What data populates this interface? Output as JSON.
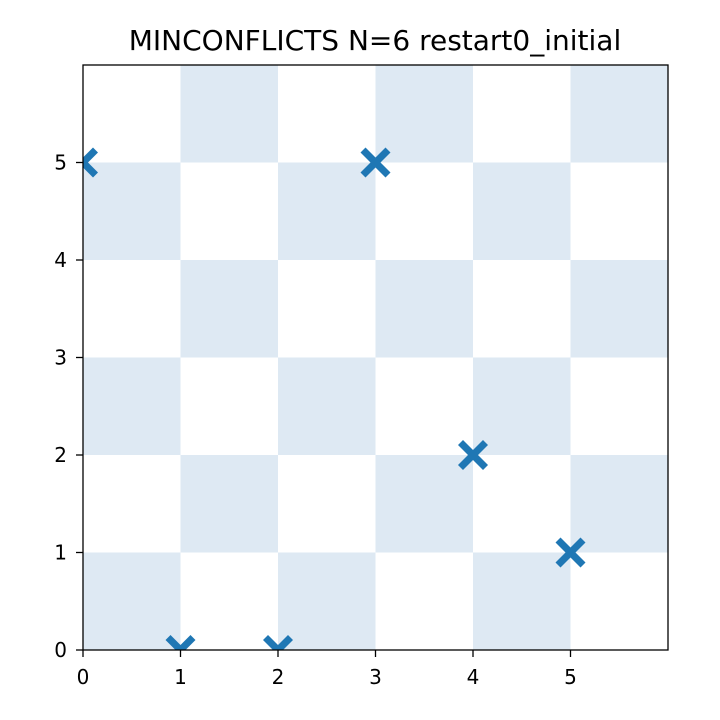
{
  "chart_data": {
    "type": "scatter",
    "title": "MINCONFLICTS N=6 restart0_initial",
    "xlabel": "",
    "ylabel": "",
    "xlim": [
      0,
      6
    ],
    "ylim": [
      0,
      6
    ],
    "x_ticks": [
      0,
      1,
      2,
      3,
      4,
      5
    ],
    "y_ticks": [
      0,
      1,
      2,
      3,
      4,
      5
    ],
    "board_size": 6,
    "grid": false,
    "marker": "X",
    "colors": {
      "marker": "#1f77b4",
      "dark_square": "#dee9f3",
      "light_square": "#ffffff"
    },
    "points": [
      {
        "x": 0,
        "y": 5
      },
      {
        "x": 1,
        "y": 0
      },
      {
        "x": 2,
        "y": 0
      },
      {
        "x": 3,
        "y": 5
      },
      {
        "x": 4,
        "y": 2
      },
      {
        "x": 5,
        "y": 1
      }
    ]
  }
}
